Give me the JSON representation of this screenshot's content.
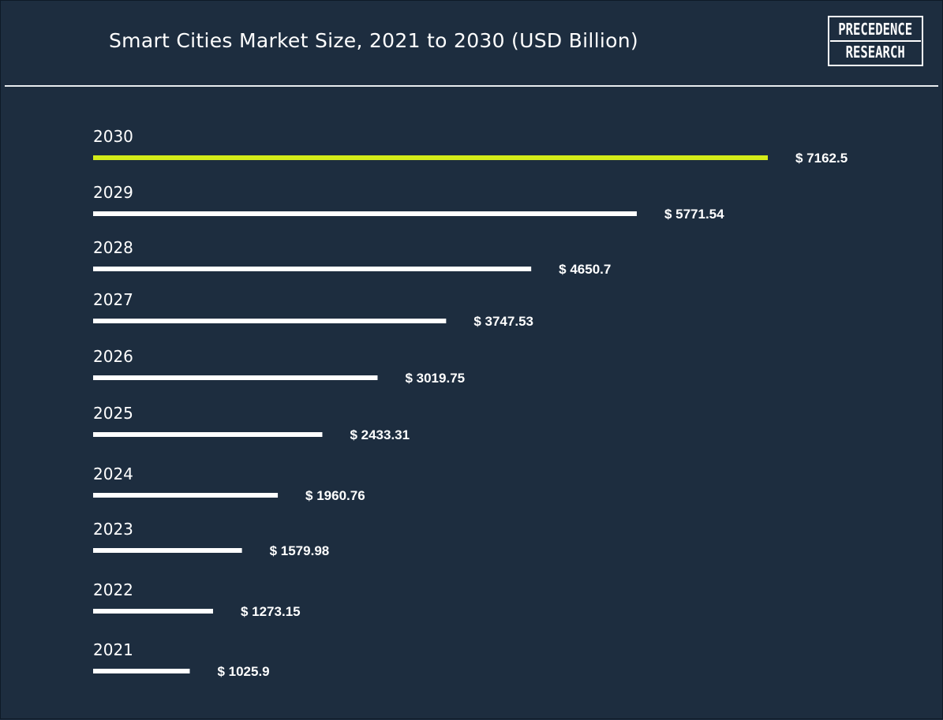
{
  "title": "Smart Cities Market Size, 2021 to 2030 (USD Billion)",
  "logo": {
    "line1": "PRECEDENCE",
    "line2": "RESEARCH"
  },
  "colors": {
    "background": "#1d2d3f",
    "bar": "#ffffff",
    "highlight_bar": "#d4eb19",
    "text": "#ffffff"
  },
  "chart_data": {
    "type": "bar",
    "orientation": "horizontal",
    "categories": [
      "2030",
      "2029",
      "2028",
      "2027",
      "2026",
      "2025",
      "2024",
      "2023",
      "2022",
      "2021"
    ],
    "values": [
      7162.5,
      5771.54,
      4650.7,
      3747.53,
      3019.75,
      2433.31,
      1960.76,
      1579.98,
      1273.15,
      1025.9
    ],
    "value_labels": [
      "$ 7162.5",
      "$ 5771.54",
      "$ 4650.7",
      "$ 3747.53",
      "$ 3019.75",
      "$ 2433.31",
      "$ 1960.76",
      "$ 1579.98",
      "$ 1273.15",
      "$ 1025.9"
    ],
    "highlight_category": "2030",
    "title": "Smart Cities Market Size, 2021 to 2030 (USD Billion)",
    "xlabel": "",
    "ylabel": "",
    "grid": false,
    "legend": "none"
  }
}
